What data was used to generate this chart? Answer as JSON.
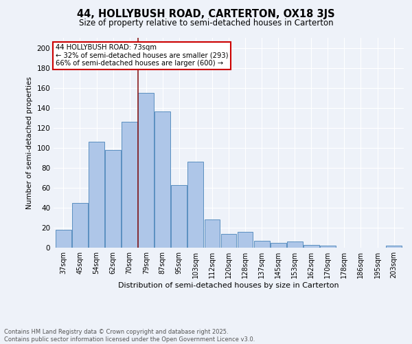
{
  "title": "44, HOLLYBUSH ROAD, CARTERTON, OX18 3JS",
  "subtitle": "Size of property relative to semi-detached houses in Carterton",
  "xlabel": "Distribution of semi-detached houses by size in Carterton",
  "ylabel": "Number of semi-detached properties",
  "categories": [
    "37sqm",
    "45sqm",
    "54sqm",
    "62sqm",
    "70sqm",
    "79sqm",
    "87sqm",
    "95sqm",
    "103sqm",
    "112sqm",
    "120sqm",
    "128sqm",
    "137sqm",
    "145sqm",
    "153sqm",
    "162sqm",
    "170sqm",
    "178sqm",
    "186sqm",
    "195sqm",
    "203sqm"
  ],
  "values": [
    18,
    45,
    106,
    98,
    126,
    155,
    136,
    63,
    86,
    28,
    14,
    16,
    7,
    5,
    6,
    3,
    2,
    0,
    0,
    0,
    2
  ],
  "bar_color": "#aec6e8",
  "bar_edge_color": "#5a8fc0",
  "vline_x": 4.5,
  "vline_color": "#8b1a1a",
  "annotation_title": "44 HOLLYBUSH ROAD: 73sqm",
  "annotation_line1": "← 32% of semi-detached houses are smaller (293)",
  "annotation_line2": "66% of semi-detached houses are larger (600) →",
  "annotation_box_color": "#ffffff",
  "annotation_box_edge": "#cc0000",
  "ylim": [
    0,
    210
  ],
  "yticks": [
    0,
    20,
    40,
    60,
    80,
    100,
    120,
    140,
    160,
    180,
    200
  ],
  "footer_line1": "Contains HM Land Registry data © Crown copyright and database right 2025.",
  "footer_line2": "Contains public sector information licensed under the Open Government Licence v3.0.",
  "bg_color": "#eef2f9",
  "grid_color": "#ffffff"
}
